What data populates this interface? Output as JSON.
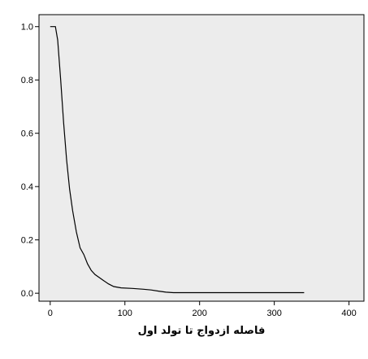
{
  "chart_data": {
    "type": "line",
    "title": "",
    "xlabel": "فاصله ازدواج تا تولد اول",
    "ylabel": "",
    "xlim": [
      -15,
      420
    ],
    "ylim": [
      -0.03,
      1.045
    ],
    "x_ticks": [
      0,
      100,
      200,
      300,
      400
    ],
    "y_ticks": [
      0.0,
      0.2,
      0.4,
      0.6,
      0.8,
      1.0
    ],
    "x_tick_labels": [
      "0",
      "100",
      "200",
      "300",
      "400"
    ],
    "y_tick_labels": [
      "0.0",
      "0.2",
      "0.4",
      "0.6",
      "0.8",
      "1.0"
    ],
    "grid": false,
    "legend": "none",
    "colors": {
      "plot_background": "#ececec",
      "line": "#000000"
    },
    "series": [
      {
        "x": [
          0,
          7,
          10,
          14,
          18,
          22,
          26,
          30,
          35,
          40,
          45,
          50,
          55,
          60,
          65,
          70,
          78,
          85,
          95,
          110,
          125,
          135,
          145,
          155,
          165,
          200,
          250,
          300,
          340
        ],
        "y": [
          1.0,
          1.0,
          0.95,
          0.8,
          0.64,
          0.5,
          0.39,
          0.31,
          0.23,
          0.17,
          0.145,
          0.11,
          0.085,
          0.07,
          0.06,
          0.05,
          0.035,
          0.025,
          0.02,
          0.018,
          0.015,
          0.012,
          0.008,
          0.004,
          0.002,
          0.002,
          0.002,
          0.002,
          0.002
        ]
      }
    ]
  }
}
